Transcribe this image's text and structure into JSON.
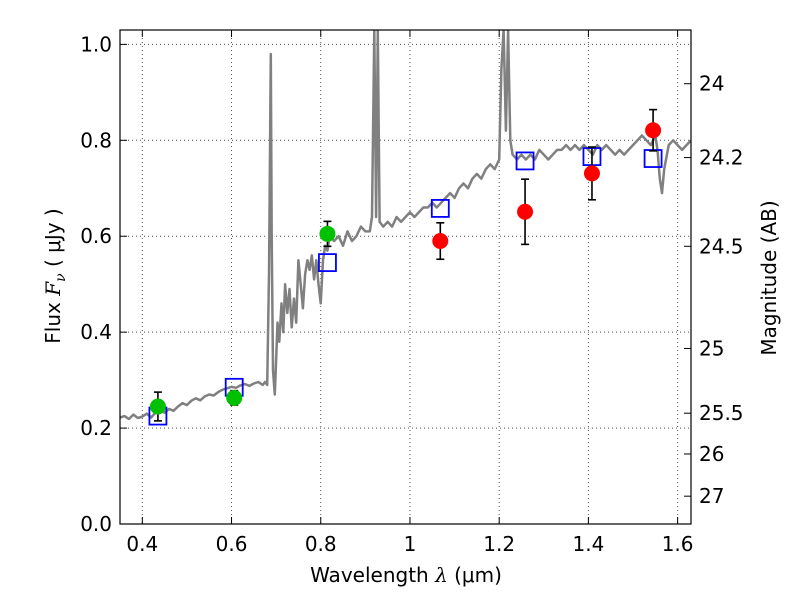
{
  "chart_data": {
    "type": "scatter",
    "xlabel_prefix": "Wavelength ",
    "xlabel_symbol": "λ",
    "xlabel_unit": " (μm)",
    "ylabel_prefix": "Flux ",
    "ylabel_symbol": "F",
    "ylabel_subscript": "ν",
    "ylabel_unit": " ( μJy )",
    "y2label": "Magnitude (AB)",
    "xlim": [
      0.35,
      1.63
    ],
    "ylim": [
      0.0,
      1.03
    ],
    "grid": true,
    "x_ticks": [
      0.4,
      0.6,
      0.8,
      1.0,
      1.2,
      1.4,
      1.6
    ],
    "x_tick_labels": [
      "0.4",
      "0.6",
      "0.8",
      "1",
      "1.2",
      "1.4",
      "1.6"
    ],
    "y_ticks": [
      0.0,
      0.2,
      0.4,
      0.6,
      0.8,
      1.0
    ],
    "y_tick_labels": [
      "0.0",
      "0.2",
      "0.4",
      "0.6",
      "0.8",
      "1.0"
    ],
    "y2_ticks": [
      {
        "label": "24",
        "flux": 0.918
      },
      {
        "label": "24.2",
        "flux": 0.764
      },
      {
        "label": "24.5",
        "flux": 0.579
      },
      {
        "label": "25",
        "flux": 0.366
      },
      {
        "label": "25.5",
        "flux": 0.231
      },
      {
        "label": "26",
        "flux": 0.146
      },
      {
        "label": "27",
        "flux": 0.058
      }
    ],
    "colors": {
      "spectrum": "#808080",
      "model_box": "#0000ff",
      "optical_point": "#00c000",
      "nir_point": "#ff0000",
      "errorbar": "#000000",
      "grid": "#555555"
    },
    "spectrum": [
      [
        0.35,
        0.222
      ],
      [
        0.36,
        0.225
      ],
      [
        0.37,
        0.219
      ],
      [
        0.38,
        0.228
      ],
      [
        0.39,
        0.221
      ],
      [
        0.4,
        0.224
      ],
      [
        0.41,
        0.23
      ],
      [
        0.42,
        0.222
      ],
      [
        0.43,
        0.233
      ],
      [
        0.44,
        0.238
      ],
      [
        0.45,
        0.232
      ],
      [
        0.46,
        0.24
      ],
      [
        0.47,
        0.236
      ],
      [
        0.48,
        0.245
      ],
      [
        0.49,
        0.252
      ],
      [
        0.5,
        0.248
      ],
      [
        0.51,
        0.257
      ],
      [
        0.52,
        0.262
      ],
      [
        0.53,
        0.258
      ],
      [
        0.54,
        0.266
      ],
      [
        0.55,
        0.27
      ],
      [
        0.56,
        0.268
      ],
      [
        0.57,
        0.275
      ],
      [
        0.58,
        0.28
      ],
      [
        0.59,
        0.283
      ],
      [
        0.6,
        0.286
      ],
      [
        0.61,
        0.284
      ],
      [
        0.62,
        0.289
      ],
      [
        0.63,
        0.292
      ],
      [
        0.64,
        0.288
      ],
      [
        0.65,
        0.293
      ],
      [
        0.66,
        0.296
      ],
      [
        0.67,
        0.29
      ],
      [
        0.675,
        0.296
      ],
      [
        0.68,
        0.29
      ],
      [
        0.684,
        0.52
      ],
      [
        0.688,
        0.98
      ],
      [
        0.69,
        0.6
      ],
      [
        0.693,
        0.32
      ],
      [
        0.697,
        0.27
      ],
      [
        0.7,
        0.34
      ],
      [
        0.703,
        0.42
      ],
      [
        0.707,
        0.38
      ],
      [
        0.712,
        0.46
      ],
      [
        0.716,
        0.4
      ],
      [
        0.72,
        0.5
      ],
      [
        0.725,
        0.44
      ],
      [
        0.73,
        0.49
      ],
      [
        0.735,
        0.41
      ],
      [
        0.74,
        0.47
      ],
      [
        0.745,
        0.42
      ],
      [
        0.75,
        0.55
      ],
      [
        0.755,
        0.5
      ],
      [
        0.76,
        0.45
      ],
      [
        0.765,
        0.52
      ],
      [
        0.77,
        0.55
      ],
      [
        0.775,
        0.53
      ],
      [
        0.78,
        0.56
      ],
      [
        0.785,
        0.51
      ],
      [
        0.79,
        0.55
      ],
      [
        0.795,
        0.5
      ],
      [
        0.8,
        0.46
      ],
      [
        0.805,
        0.55
      ],
      [
        0.81,
        0.58
      ],
      [
        0.815,
        0.57
      ],
      [
        0.82,
        0.6
      ],
      [
        0.83,
        0.59
      ],
      [
        0.84,
        0.6
      ],
      [
        0.85,
        0.58
      ],
      [
        0.86,
        0.61
      ],
      [
        0.87,
        0.59
      ],
      [
        0.88,
        0.6
      ],
      [
        0.89,
        0.62
      ],
      [
        0.9,
        0.61
      ],
      [
        0.91,
        0.61
      ],
      [
        0.915,
        0.64
      ],
      [
        0.92,
        1.03
      ],
      [
        0.924,
        0.64
      ],
      [
        0.928,
        1.03
      ],
      [
        0.932,
        0.63
      ],
      [
        0.94,
        0.62
      ],
      [
        0.95,
        0.63
      ],
      [
        0.96,
        0.62
      ],
      [
        0.97,
        0.64
      ],
      [
        0.98,
        0.63
      ],
      [
        0.99,
        0.64
      ],
      [
        1.0,
        0.65
      ],
      [
        1.01,
        0.64
      ],
      [
        1.02,
        0.65
      ],
      [
        1.03,
        0.66
      ],
      [
        1.04,
        0.66
      ],
      [
        1.05,
        0.67
      ],
      [
        1.06,
        0.66
      ],
      [
        1.07,
        0.67
      ],
      [
        1.08,
        0.68
      ],
      [
        1.09,
        0.69
      ],
      [
        1.1,
        0.68
      ],
      [
        1.11,
        0.7
      ],
      [
        1.12,
        0.71
      ],
      [
        1.13,
        0.7
      ],
      [
        1.14,
        0.72
      ],
      [
        1.15,
        0.73
      ],
      [
        1.16,
        0.72
      ],
      [
        1.17,
        0.74
      ],
      [
        1.18,
        0.75
      ],
      [
        1.19,
        0.74
      ],
      [
        1.2,
        0.76
      ],
      [
        1.205,
        0.95
      ],
      [
        1.21,
        1.03
      ],
      [
        1.215,
        0.82
      ],
      [
        1.22,
        1.03
      ],
      [
        1.225,
        0.8
      ],
      [
        1.23,
        0.77
      ],
      [
        1.24,
        0.76
      ],
      [
        1.25,
        0.77
      ],
      [
        1.26,
        0.76
      ],
      [
        1.27,
        0.77
      ],
      [
        1.28,
        0.76
      ],
      [
        1.29,
        0.78
      ],
      [
        1.3,
        0.77
      ],
      [
        1.31,
        0.76
      ],
      [
        1.32,
        0.77
      ],
      [
        1.33,
        0.78
      ],
      [
        1.34,
        0.78
      ],
      [
        1.35,
        0.79
      ],
      [
        1.36,
        0.78
      ],
      [
        1.37,
        0.79
      ],
      [
        1.38,
        0.78
      ],
      [
        1.39,
        0.79
      ],
      [
        1.4,
        0.78
      ],
      [
        1.41,
        0.77
      ],
      [
        1.42,
        0.79
      ],
      [
        1.43,
        0.78
      ],
      [
        1.44,
        0.79
      ],
      [
        1.45,
        0.78
      ],
      [
        1.46,
        0.77
      ],
      [
        1.47,
        0.78
      ],
      [
        1.48,
        0.77
      ],
      [
        1.49,
        0.78
      ],
      [
        1.5,
        0.79
      ],
      [
        1.51,
        0.8
      ],
      [
        1.52,
        0.81
      ],
      [
        1.53,
        0.8
      ],
      [
        1.54,
        0.79
      ],
      [
        1.55,
        0.81
      ],
      [
        1.555,
        0.78
      ],
      [
        1.56,
        0.72
      ],
      [
        1.565,
        0.69
      ],
      [
        1.57,
        0.74
      ],
      [
        1.58,
        0.79
      ],
      [
        1.59,
        0.8
      ],
      [
        1.6,
        0.79
      ],
      [
        1.61,
        0.78
      ],
      [
        1.62,
        0.79
      ],
      [
        1.63,
        0.8
      ]
    ],
    "model_boxes": [
      {
        "x": 0.435,
        "y": 0.225
      },
      {
        "x": 0.606,
        "y": 0.285
      },
      {
        "x": 0.815,
        "y": 0.545
      },
      {
        "x": 1.068,
        "y": 0.658
      },
      {
        "x": 1.258,
        "y": 0.757
      },
      {
        "x": 1.408,
        "y": 0.766
      },
      {
        "x": 1.545,
        "y": 0.762
      }
    ],
    "optical_points": [
      {
        "x": 0.435,
        "y": 0.245,
        "err": 0.03
      },
      {
        "x": 0.606,
        "y": 0.263,
        "err": 0.015
      },
      {
        "x": 0.815,
        "y": 0.605,
        "err": 0.026
      }
    ],
    "nir_points": [
      {
        "x": 1.068,
        "y": 0.59,
        "err": 0.038
      },
      {
        "x": 1.258,
        "y": 0.651,
        "err": 0.068
      },
      {
        "x": 1.408,
        "y": 0.731,
        "err": 0.055
      },
      {
        "x": 1.545,
        "y": 0.821,
        "err": 0.043
      }
    ]
  }
}
